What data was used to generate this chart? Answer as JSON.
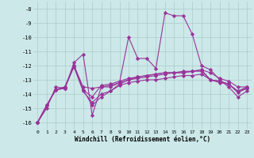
{
  "xlabel": "Windchill (Refroidissement éolien,°C)",
  "xlim": [
    -0.5,
    23.5
  ],
  "ylim": [
    -16.5,
    -7.5
  ],
  "yticks": [
    -16,
    -15,
    -14,
    -13,
    -12,
    -11,
    -10,
    -9,
    -8
  ],
  "xticks": [
    0,
    1,
    2,
    3,
    4,
    5,
    6,
    7,
    8,
    9,
    10,
    11,
    12,
    13,
    14,
    15,
    16,
    17,
    18,
    19,
    20,
    21,
    22,
    23
  ],
  "bg_color": "#cce8e8",
  "grid_color": "#aacccc",
  "line_color": "#993399",
  "lines": [
    [
      -16.0,
      -15.0,
      -13.5,
      -13.6,
      -11.8,
      -11.2,
      -15.5,
      -13.5,
      -13.5,
      -13.2,
      -10.0,
      -11.5,
      -11.5,
      -12.2,
      -8.3,
      -8.5,
      -8.5,
      -9.8,
      -12.0,
      -12.3,
      -13.0,
      -13.5,
      -14.2,
      -13.8
    ],
    [
      -16.0,
      -14.8,
      -13.7,
      -13.6,
      -12.0,
      -13.5,
      -13.6,
      -13.5,
      -13.4,
      -13.2,
      -13.0,
      -12.8,
      -12.7,
      -12.6,
      -12.5,
      -12.5,
      -12.4,
      -12.4,
      -12.3,
      -12.5,
      -12.9,
      -13.1,
      -13.5,
      -13.5
    ],
    [
      -16.0,
      -14.8,
      -13.7,
      -13.5,
      -12.1,
      -13.8,
      -14.6,
      -14.0,
      -13.8,
      -13.4,
      -13.2,
      -13.1,
      -13.0,
      -13.0,
      -12.9,
      -12.8,
      -12.7,
      -12.7,
      -12.6,
      -13.0,
      -13.2,
      -13.3,
      -13.8,
      -13.6
    ],
    [
      -16.0,
      -14.8,
      -13.7,
      -13.5,
      -12.0,
      -13.7,
      -14.8,
      -14.2,
      -13.8,
      -13.3,
      -13.0,
      -12.9,
      -12.8,
      -12.7,
      -12.6,
      -12.5,
      -12.5,
      -12.4,
      -12.4,
      -13.0,
      -13.1,
      -13.3,
      -13.9,
      -13.6
    ],
    [
      -16.0,
      -14.8,
      -13.7,
      -13.6,
      -12.0,
      -13.7,
      -14.2,
      -13.4,
      -13.3,
      -13.1,
      -12.9,
      -12.8,
      -12.7,
      -12.6,
      -12.5,
      -12.5,
      -12.5,
      -12.4,
      -12.3,
      -13.0,
      -13.1,
      -13.3,
      -13.8,
      -13.5
    ]
  ],
  "marker": "D",
  "markersize": 2.2,
  "linewidth": 0.8
}
